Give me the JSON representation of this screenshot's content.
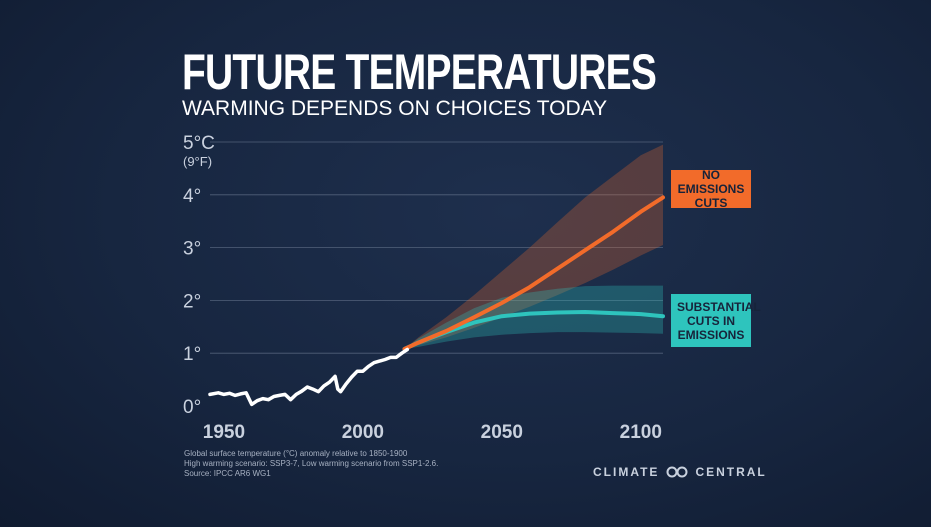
{
  "header": {
    "title": "FUTURE TEMPERATURES",
    "subtitle": "WARMING DEPENDS ON CHOICES TODAY"
  },
  "callouts": {
    "high": "NO EMISSIONS CUTS",
    "low": "SUBSTANTIAL CUTS IN EMISSIONS"
  },
  "notes": [
    "Global surface temperature (°C) anomaly relative to 1850-1900",
    "High warming scenario: SSP3-7, Low warming scenario from SSP1-2.6.",
    "Source: IPCC AR6 WG1"
  ],
  "brand": {
    "left": "CLIMATE",
    "right": "CENTRAL"
  },
  "colors": {
    "background": "#172640",
    "historical": "#ffffff",
    "high_scenario": "#f26b2a",
    "low_scenario": "#2ec4bd",
    "gridline": "#6a7890"
  },
  "chart_data": {
    "type": "line",
    "title": "FUTURE TEMPERATURES",
    "subtitle": "WARMING DEPENDS ON CHOICES TODAY",
    "xlabel": "",
    "ylabel": "",
    "xlim": [
      1945,
      2108
    ],
    "ylim": [
      0,
      5
    ],
    "x_ticks": [
      1950,
      2000,
      2050,
      2100
    ],
    "y_ticks": [
      {
        "value": 0,
        "label": "0°"
      },
      {
        "value": 1,
        "label": "1°"
      },
      {
        "value": 2,
        "label": "2°"
      },
      {
        "value": 3,
        "label": "3°"
      },
      {
        "value": 4,
        "label": "4°"
      },
      {
        "value": 5,
        "label": "5°C",
        "sublabel": "(9°F)"
      }
    ],
    "grid": true,
    "series": [
      {
        "key": "historical",
        "x": [
          1945,
          1948,
          1950,
          1952,
          1954,
          1956,
          1958,
          1960,
          1962,
          1964,
          1966,
          1968,
          1970,
          1972,
          1974,
          1976,
          1978,
          1980,
          1982,
          1984,
          1986,
          1988,
          1990,
          1991,
          1992,
          1994,
          1996,
          1998,
          2000,
          2002,
          2004,
          2006,
          2008,
          2010,
          2012,
          2014,
          2016
        ],
        "y": [
          0.22,
          0.25,
          0.22,
          0.24,
          0.2,
          0.23,
          0.25,
          0.03,
          0.1,
          0.14,
          0.12,
          0.18,
          0.2,
          0.22,
          0.12,
          0.22,
          0.28,
          0.36,
          0.32,
          0.27,
          0.38,
          0.45,
          0.56,
          0.32,
          0.27,
          0.42,
          0.55,
          0.66,
          0.66,
          0.75,
          0.82,
          0.85,
          0.88,
          0.92,
          0.92,
          1.0,
          1.07
        ]
      },
      {
        "key": "high_scenario",
        "x": [
          2015,
          2020,
          2030,
          2040,
          2050,
          2060,
          2070,
          2080,
          2090,
          2100,
          2108
        ],
        "y": [
          1.08,
          1.2,
          1.42,
          1.68,
          1.95,
          2.25,
          2.6,
          2.95,
          3.3,
          3.68,
          3.95
        ],
        "lower": [
          1.08,
          1.15,
          1.3,
          1.48,
          1.68,
          1.88,
          2.1,
          2.33,
          2.58,
          2.85,
          3.05
        ],
        "upper": [
          1.08,
          1.3,
          1.68,
          2.1,
          2.55,
          3.0,
          3.48,
          3.95,
          4.35,
          4.75,
          4.95
        ]
      },
      {
        "key": "low_scenario",
        "x": [
          2015,
          2020,
          2030,
          2040,
          2050,
          2060,
          2070,
          2080,
          2090,
          2100,
          2108
        ],
        "y": [
          1.08,
          1.2,
          1.4,
          1.58,
          1.7,
          1.75,
          1.77,
          1.78,
          1.76,
          1.74,
          1.7
        ],
        "lower": [
          1.08,
          1.12,
          1.22,
          1.3,
          1.35,
          1.38,
          1.4,
          1.4,
          1.39,
          1.38,
          1.37
        ],
        "upper": [
          1.08,
          1.28,
          1.58,
          1.85,
          2.05,
          2.15,
          2.22,
          2.27,
          2.28,
          2.28,
          2.28
        ]
      }
    ],
    "annotations": [
      "NO EMISSIONS CUTS",
      "SUBSTANTIAL CUTS IN EMISSIONS"
    ]
  }
}
